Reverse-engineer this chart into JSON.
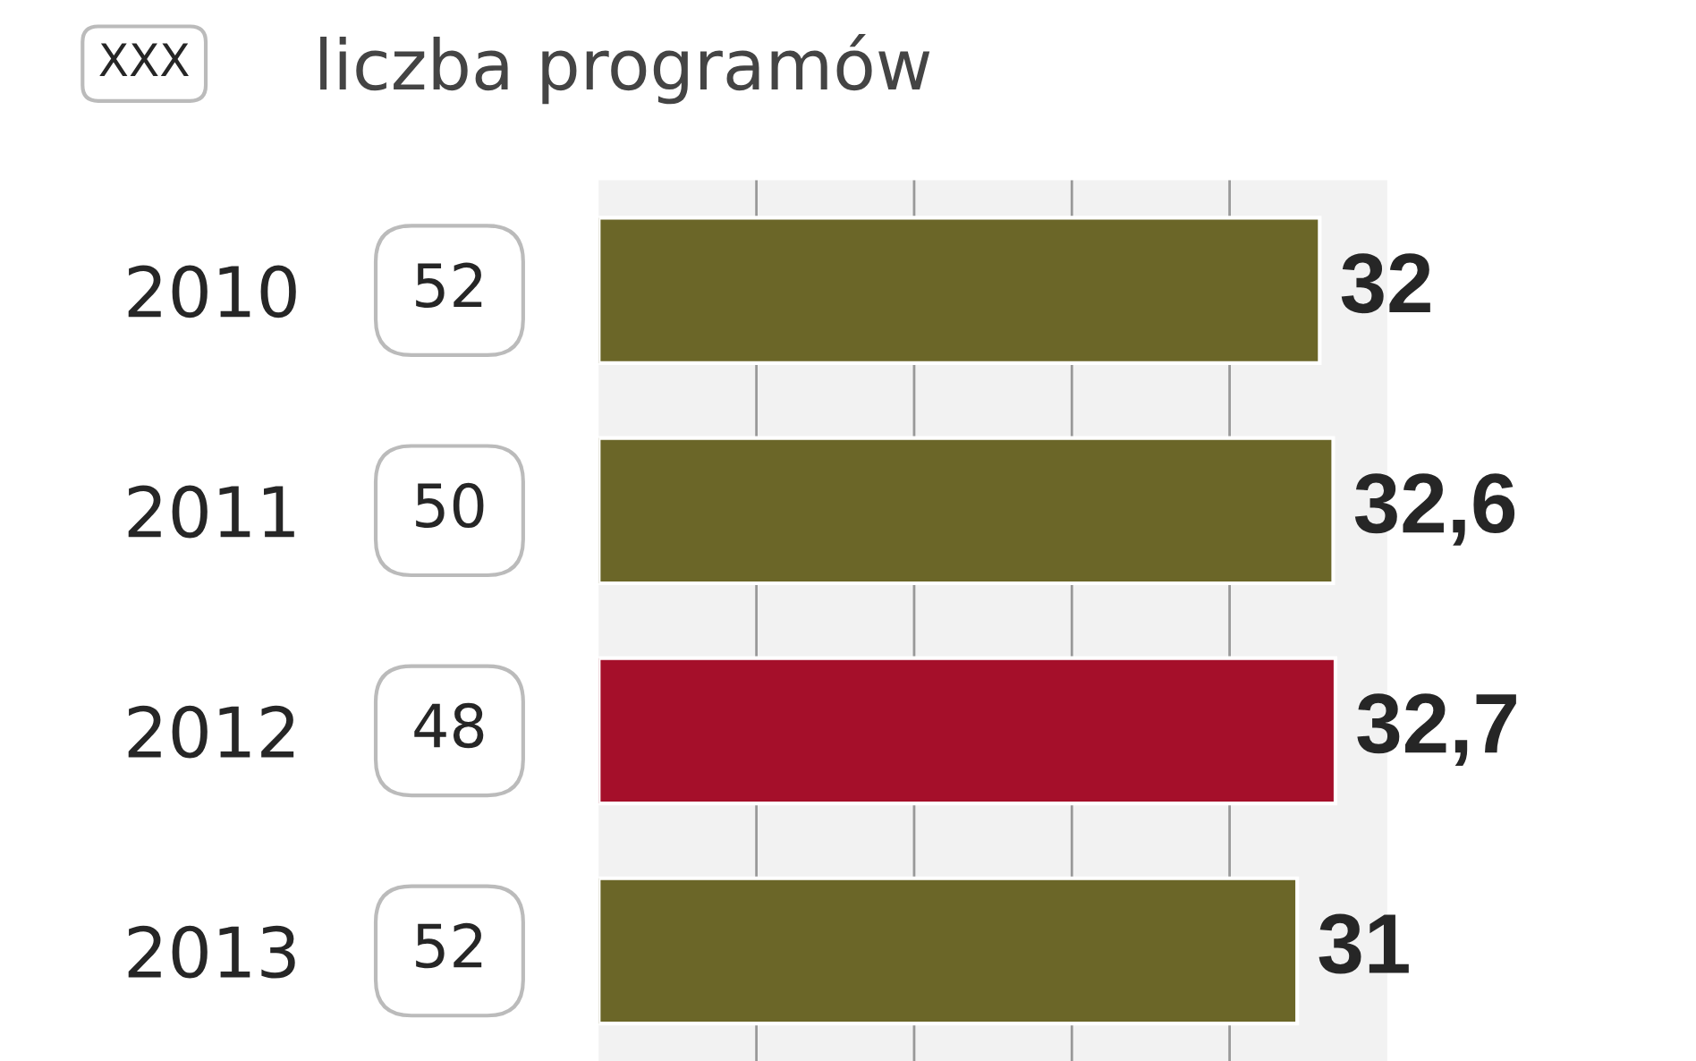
{
  "chart_data": {
    "type": "bar",
    "orientation": "horizontal",
    "categories": [
      "2010",
      "2011",
      "2012",
      "2013"
    ],
    "values": [
      32,
      32.6,
      32.7,
      31
    ],
    "colors": [
      "#6b6628",
      "#6b6628",
      "#a50f2a",
      "#6b6628"
    ],
    "value_labels": [
      "32",
      "32,6",
      "32,7",
      "31"
    ],
    "xlim": [
      0,
      35
    ],
    "xticks": [
      {
        "value": 7,
        "label": null
      },
      {
        "value": 14,
        "label": null
      },
      {
        "value": 21,
        "label": null
      },
      {
        "value": 28,
        "label": null
      }
    ],
    "tick_labels": "y",
    "grid": "x",
    "annotations": [
      "XXX",
      "liczba programów",
      "52",
      "50",
      "48",
      "52"
    ]
  }
}
